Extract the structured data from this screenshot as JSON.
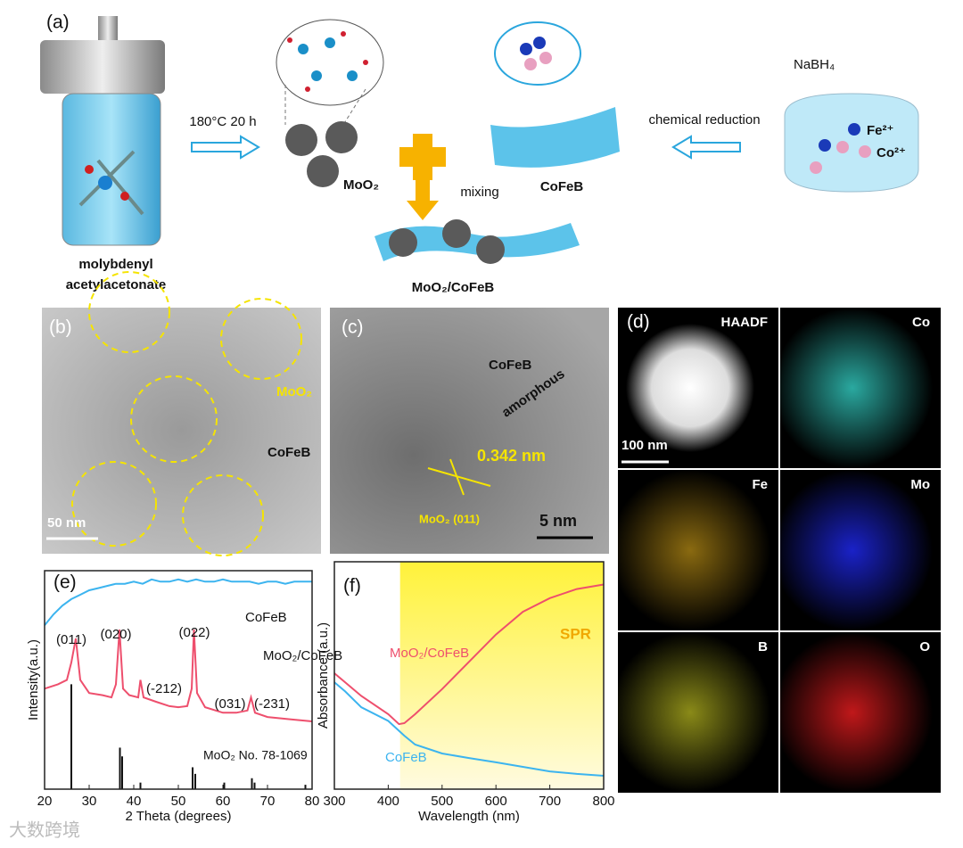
{
  "figure": {
    "a": {
      "label": "(a)",
      "condition": "180°C 20 h",
      "moo2": "MoO₂",
      "mixing": "mixing",
      "cofeb": "CoFeB",
      "reduction": "chemical reduction",
      "nabh4": "NaBH₄",
      "fe": "Fe²⁺",
      "co": "Co²⁺",
      "precursor_1": "molybdenyl",
      "precursor_2": "acetylacetonate",
      "composite": "MoO₂/CoFeB"
    },
    "b": {
      "label": "(b)",
      "moo2": "MoO₂",
      "cofeb": "CoFeB",
      "scale": "50 nm"
    },
    "c": {
      "label": "(c)",
      "cofeb": "CoFeB",
      "amorphous": "amorphous",
      "spacing": "0.342 nm",
      "plane": "MoO₂ (011)",
      "scale": "5 nm"
    },
    "d": {
      "label": "(d)",
      "maps": [
        "HAADF",
        "Co",
        "Fe",
        "Mo",
        "B",
        "O"
      ],
      "scale": "100 nm"
    },
    "watermark": "大数跨境"
  },
  "chart_data": [
    {
      "type": "line",
      "panel_label": "(e)",
      "x_label": "2 Theta (degrees)",
      "y_label": "Intensity(a.u.)",
      "xlim": [
        20,
        80
      ],
      "xticks": [
        20,
        30,
        40,
        50,
        60,
        70,
        80
      ],
      "ylim": [
        0,
        100
      ],
      "series": [
        {
          "name": "CoFeB",
          "color": "#3cb4ef",
          "x": [
            20,
            22,
            24,
            26,
            28,
            30,
            32,
            34,
            36,
            38,
            40,
            42,
            44,
            46,
            48,
            50,
            52,
            54,
            56,
            58,
            60,
            62,
            64,
            66,
            68,
            70,
            72,
            74,
            76,
            78,
            80
          ],
          "values": [
            75,
            80,
            84,
            87,
            89,
            91,
            92,
            93,
            94,
            94,
            95,
            94,
            96,
            95,
            95,
            96,
            95,
            96,
            95,
            95,
            96,
            95,
            95,
            95,
            94,
            95,
            95,
            94,
            95,
            95,
            95
          ]
        },
        {
          "name": "MoO₂/CoFeB",
          "color": "#ee4f6d",
          "x": [
            20,
            23,
            25,
            26,
            27,
            28,
            30,
            33,
            35,
            36,
            36.8,
            37.6,
            39,
            41,
            41.5,
            42.2,
            45,
            48,
            50,
            52,
            53,
            53.5,
            54.2,
            56,
            60,
            63,
            65.5,
            66.3,
            67.2,
            70,
            75,
            80
          ],
          "values": [
            46,
            48,
            50,
            58,
            69,
            50,
            44,
            43,
            42,
            48,
            73,
            46,
            43,
            42,
            50,
            42,
            40,
            38,
            37.5,
            38,
            46,
            73,
            44,
            37.5,
            35,
            35,
            36,
            42,
            35,
            33,
            32,
            31
          ]
        }
      ],
      "reference": {
        "name": "MoO₂ No. 78-1069",
        "color": "#111111",
        "x": [
          26,
          36.9,
          37.4,
          41.5,
          53.2,
          53.8,
          60.3,
          66.5,
          67.1,
          78.5
        ],
        "values": [
          48,
          19,
          15,
          3,
          10,
          7,
          3,
          5,
          3,
          2
        ]
      },
      "annotations": [
        "(011)",
        "(020)",
        "(-212)",
        "(022)",
        "(031)",
        "(-231)"
      ]
    },
    {
      "type": "line",
      "panel_label": "(f)",
      "x_label": "Wavelength (nm)",
      "y_label": "Absorbance (a.u.)",
      "xlim": [
        300,
        800
      ],
      "xticks": [
        300,
        400,
        500,
        600,
        700,
        800
      ],
      "ylim": [
        0,
        100
      ],
      "shaded_region": {
        "label": "SPR",
        "x": [
          422,
          800
        ],
        "color": "#fff23a"
      },
      "series": [
        {
          "name": "MoO₂/CoFeB",
          "color": "#ee4f6d",
          "x": [
            300,
            350,
            400,
            420,
            430,
            450,
            500,
            550,
            600,
            650,
            700,
            750,
            800
          ],
          "values": [
            51,
            41,
            33,
            28.6,
            29,
            33,
            44,
            56,
            68,
            78,
            84,
            88,
            90
          ]
        },
        {
          "name": "CoFeB",
          "color": "#3cb4ef",
          "x": [
            300,
            320,
            350,
            400,
            430,
            450,
            500,
            550,
            600,
            650,
            700,
            750,
            800
          ],
          "values": [
            47,
            43,
            36,
            30,
            23.5,
            19.6,
            15.7,
            13.7,
            11.8,
            9.8,
            7.8,
            6.7,
            5.9
          ]
        }
      ]
    }
  ]
}
